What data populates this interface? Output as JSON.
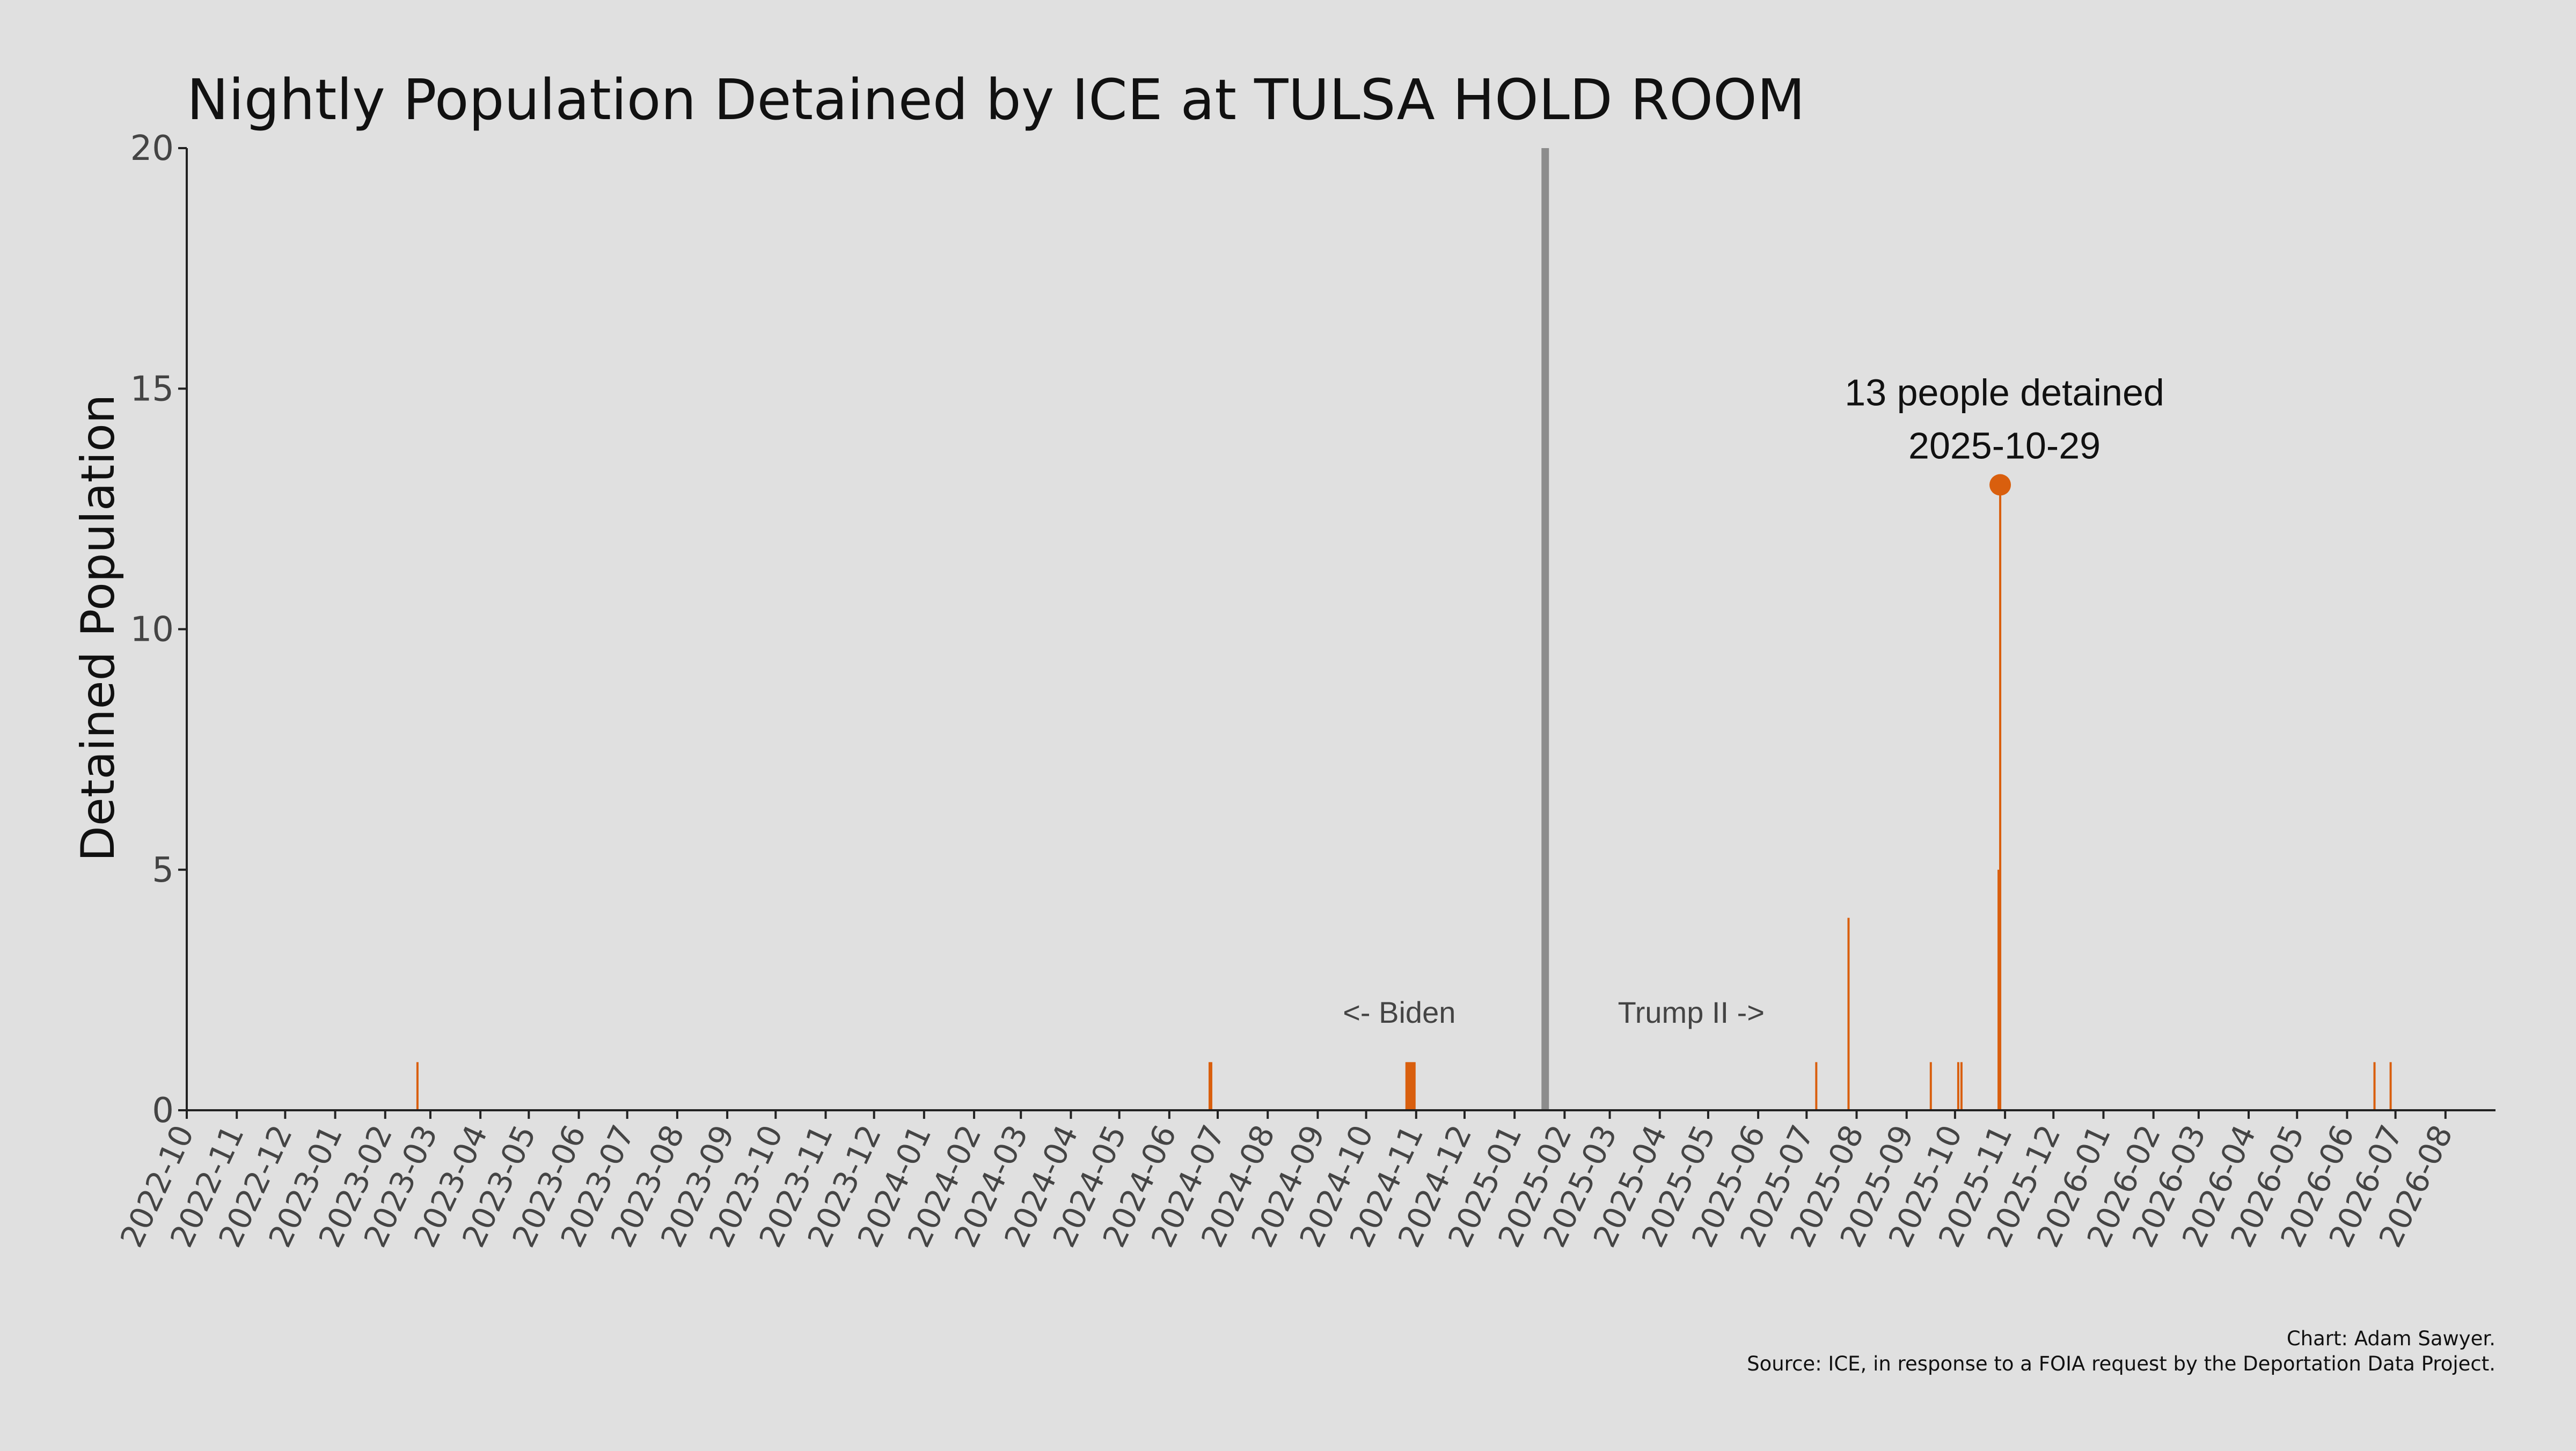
{
  "chart_data": {
    "type": "bar",
    "title": "Nightly Population Detained by ICE at TULSA HOLD ROOM",
    "ylabel": "Detained Population",
    "xlabel": "",
    "ylim": [
      0,
      20
    ],
    "yticks": [
      0,
      5,
      10,
      15,
      20
    ],
    "xlim": [
      "2022-10-01",
      "2026-09-01"
    ],
    "xticks": [
      "2022-10",
      "2022-11",
      "2022-12",
      "2023-01",
      "2023-02",
      "2023-03",
      "2023-04",
      "2023-05",
      "2023-06",
      "2023-07",
      "2023-08",
      "2023-09",
      "2023-10",
      "2023-11",
      "2023-12",
      "2024-01",
      "2024-02",
      "2024-03",
      "2024-04",
      "2024-05",
      "2024-06",
      "2024-07",
      "2024-08",
      "2024-09",
      "2024-10",
      "2024-11",
      "2024-12",
      "2025-01",
      "2025-02",
      "2025-03",
      "2025-04",
      "2025-05",
      "2025-06",
      "2025-07",
      "2025-08",
      "2025-09",
      "2025-10",
      "2025-11",
      "2025-12",
      "2026-01",
      "2026-02",
      "2026-03",
      "2026-04",
      "2026-05",
      "2026-06",
      "2026-07",
      "2026-08"
    ],
    "bar_color": "#d95f0e",
    "divider": {
      "date": "2025-01-20",
      "color": "#8c8c8c"
    },
    "era_labels": {
      "left": "<- Biden",
      "right": "Trump II ->"
    },
    "grid": false,
    "series": [
      {
        "x": [
          "2023-02-21",
          "2024-06-26",
          "2024-06-27",
          "2024-10-26",
          "2024-10-27",
          "2024-10-28",
          "2024-10-29",
          "2024-10-30",
          "2024-10-31",
          "2025-07-07",
          "2025-07-27",
          "2025-09-16",
          "2025-10-03",
          "2025-10-05",
          "2025-10-28",
          "2025-10-29",
          "2026-06-18",
          "2026-06-28"
        ],
        "y": [
          1,
          1,
          1,
          1,
          1,
          1,
          1,
          1,
          1,
          1,
          4,
          1,
          1,
          1,
          5,
          13,
          1,
          1
        ]
      }
    ],
    "annotation": {
      "date": "2025-10-29",
      "value": 13,
      "line1": "13 people detained",
      "line2": "2025-10-29"
    },
    "credit_lines": [
      "Chart: Adam Sawyer.",
      "Source: ICE, in response to a FOIA request by the Deportation Data Project."
    ]
  }
}
